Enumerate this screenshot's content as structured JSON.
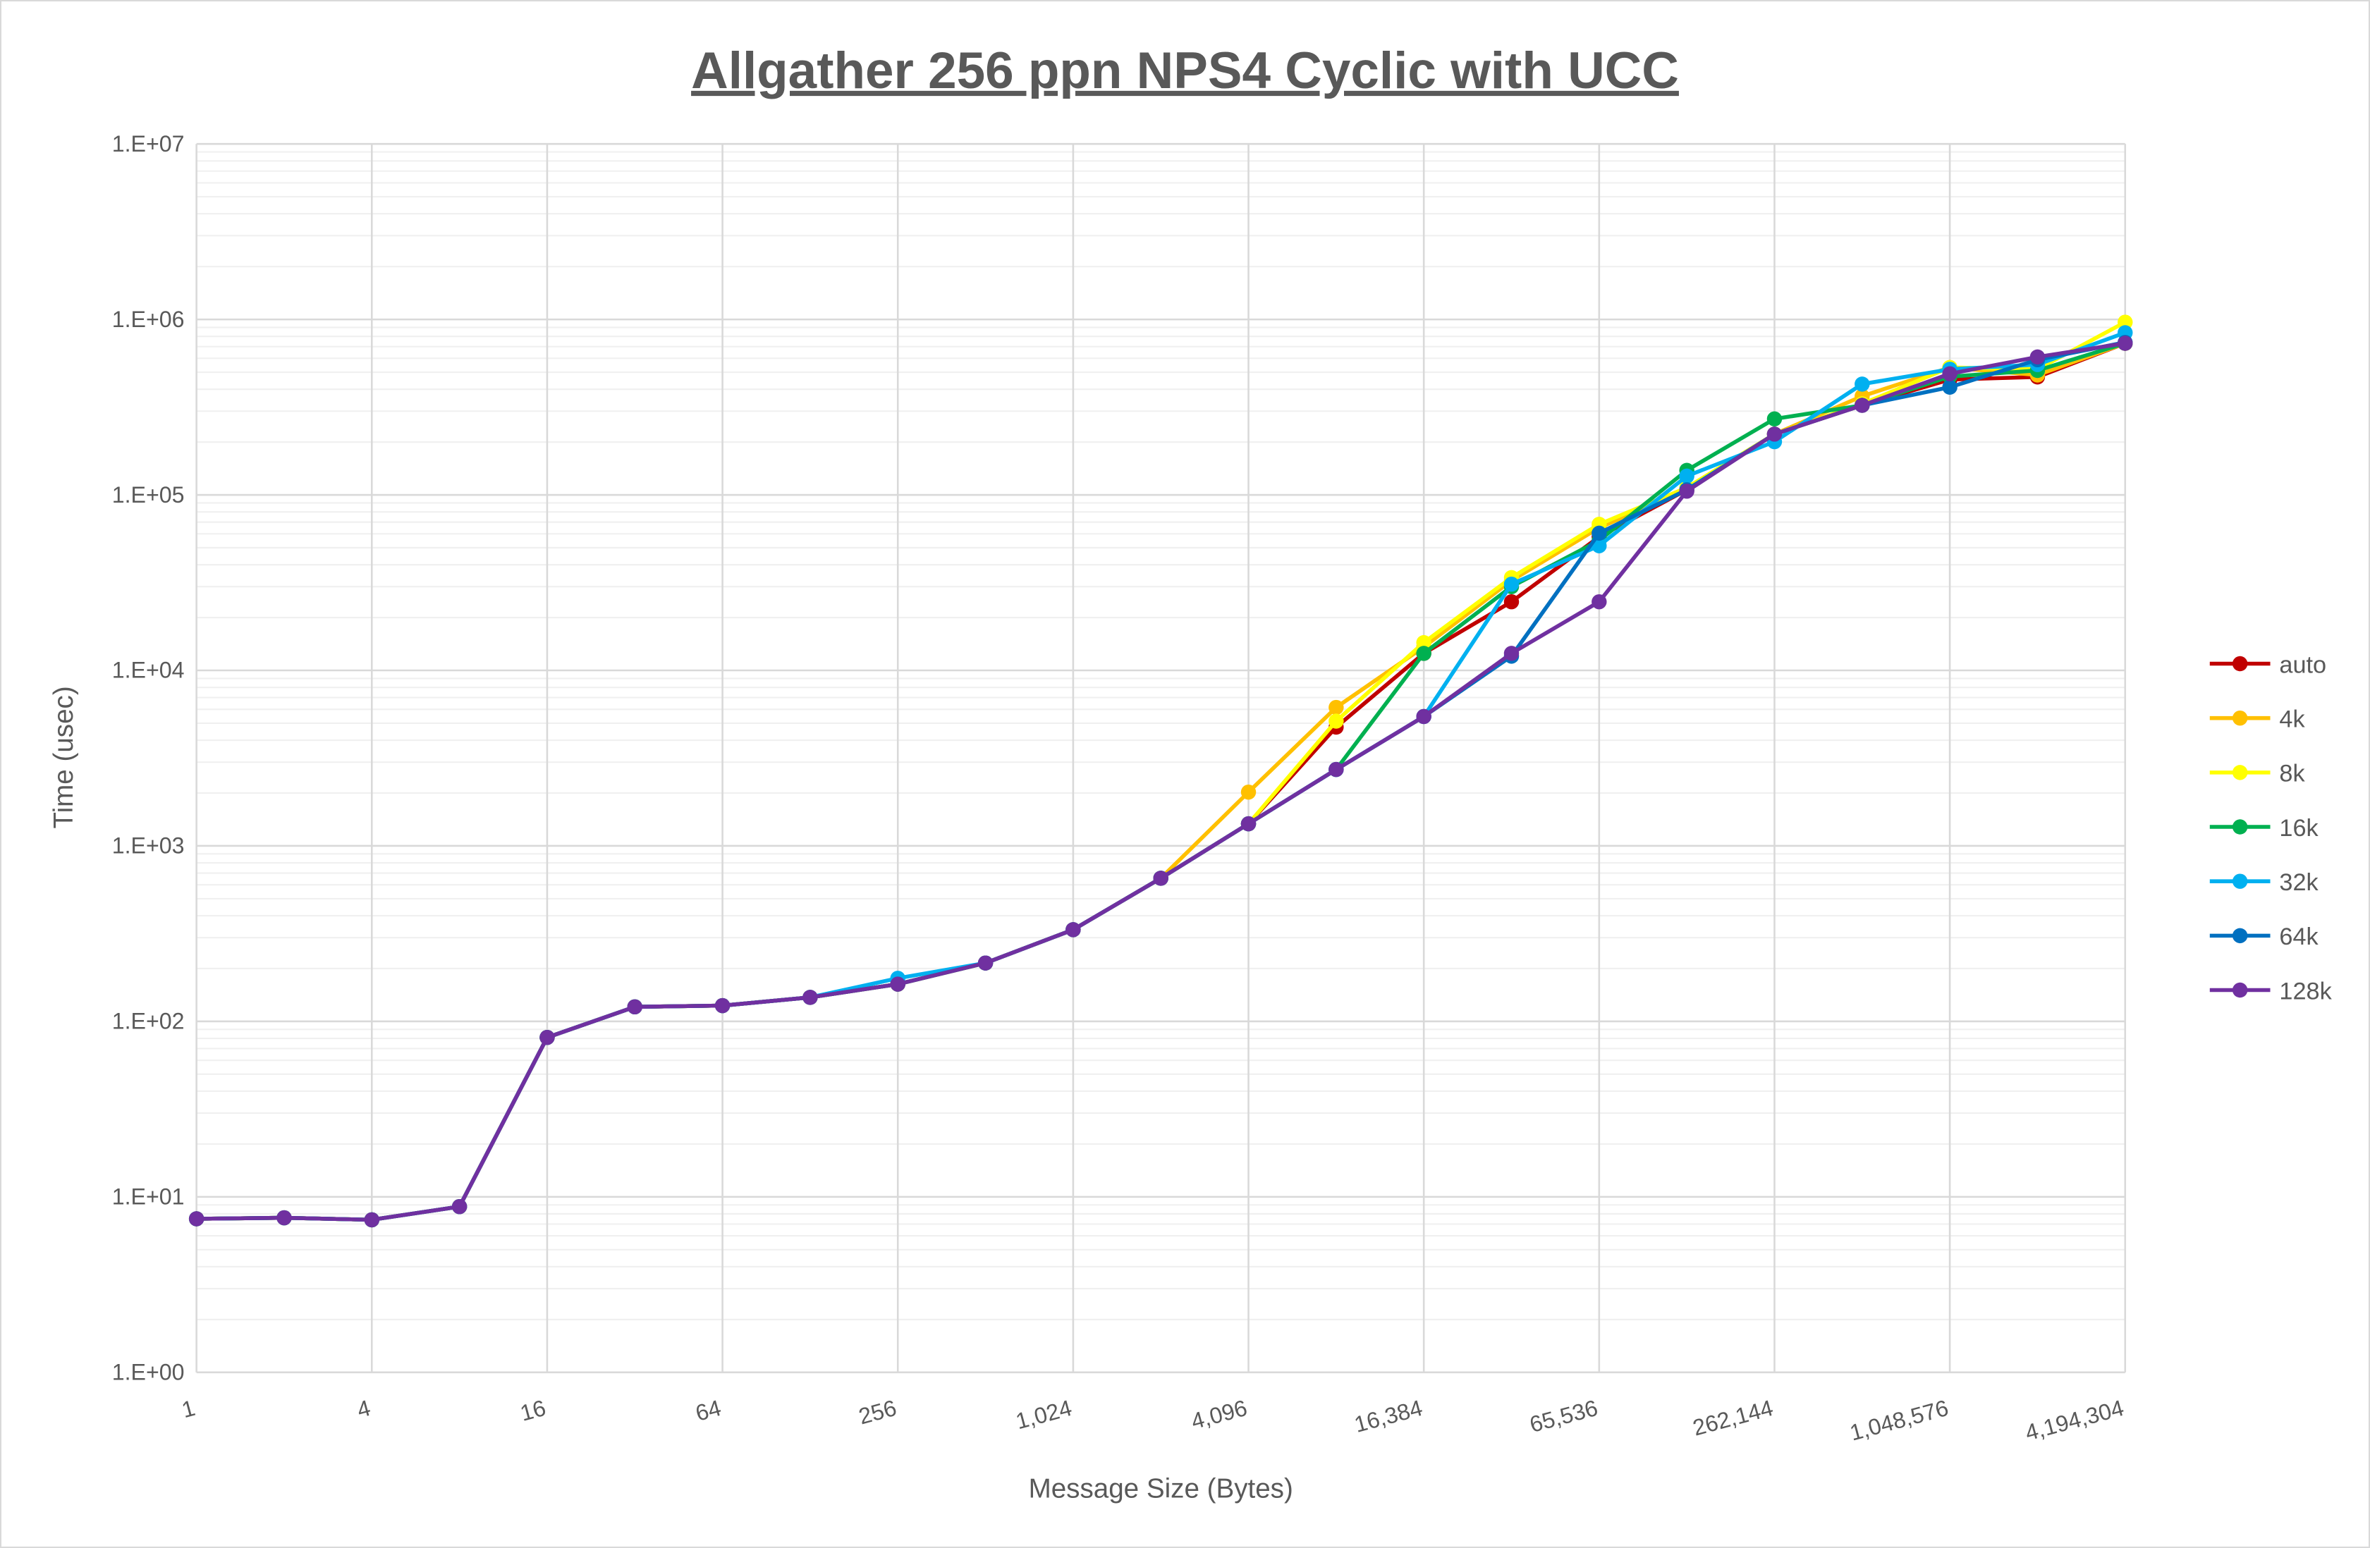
{
  "chart_data": {
    "type": "line",
    "title": "Allgather 256 ppn NPS4 Cyclic with UCC",
    "xlabel": "Message Size (Bytes)",
    "ylabel": "Time (usec)",
    "x_scale": "log2",
    "y_scale": "log10",
    "ylim": [
      1,
      10000000
    ],
    "grid": "major and minor horizontal, major vertical",
    "legend": "right",
    "x": [
      1,
      2,
      4,
      8,
      16,
      32,
      64,
      128,
      256,
      512,
      1024,
      2048,
      4096,
      8192,
      16384,
      32768,
      65536,
      131072,
      262144,
      524288,
      1048576,
      2097152,
      4194304
    ],
    "x_tick_labels": [
      "1",
      "4",
      "16",
      "64",
      "256",
      "1,024",
      "4,096",
      "16,384",
      "65,536",
      "262,144",
      "1,048,576",
      "4,194,304"
    ],
    "y_tick_labels": [
      "1.E+00",
      "1.E+01",
      "1.E+02",
      "1.E+03",
      "1.E+04",
      "1.E+05",
      "1.E+06",
      "1.E+07"
    ],
    "series": [
      {
        "name": "auto",
        "color": "#C00000",
        "values": [
          7.5,
          7.6,
          7.4,
          8.8,
          81,
          121,
          123,
          137,
          163,
          215,
          333,
          654,
          1336,
          4750,
          12500,
          24600,
          57700,
          107000,
          222000,
          324000,
          454000,
          470000,
          731000
        ]
      },
      {
        "name": "4k",
        "color": "#FFC000",
        "values": [
          7.5,
          7.6,
          7.4,
          8.8,
          81,
          121,
          123,
          137,
          163,
          215,
          333,
          654,
          2025,
          6150,
          13600,
          32500,
          65000,
          107000,
          222000,
          365000,
          532000,
          482000,
          731000
        ]
      },
      {
        "name": "8k",
        "color": "#FFFF00",
        "values": [
          7.5,
          7.6,
          7.4,
          8.8,
          81,
          121,
          123,
          137,
          163,
          215,
          333,
          654,
          1336,
          5140,
          14400,
          33800,
          68000,
          110000,
          222000,
          330000,
          532000,
          520000,
          964000
        ]
      },
      {
        "name": "16k",
        "color": "#00B050",
        "values": [
          7.5,
          7.6,
          7.4,
          8.8,
          81,
          121,
          123,
          137,
          163,
          215,
          333,
          654,
          1336,
          2725,
          12500,
          30000,
          55000,
          138000,
          271000,
          324000,
          472000,
          512000,
          731000
        ]
      },
      {
        "name": "32k",
        "color": "#00B0F0",
        "values": [
          7.5,
          7.6,
          7.4,
          8.8,
          81,
          121,
          123,
          137,
          176,
          215,
          333,
          654,
          1336,
          2725,
          5460,
          31000,
          51300,
          128000,
          201000,
          428000,
          520000,
          553000,
          840000
        ]
      },
      {
        "name": "64k",
        "color": "#0070C0",
        "values": [
          7.5,
          7.6,
          7.4,
          8.8,
          81,
          121,
          123,
          137,
          163,
          215,
          333,
          654,
          1336,
          2725,
          5460,
          12050,
          60500,
          107000,
          222000,
          324000,
          411000,
          589000,
          740000
        ]
      },
      {
        "name": "128k",
        "color": "#7030A0",
        "values": [
          7.5,
          7.6,
          7.4,
          8.8,
          81,
          121,
          123,
          137,
          163,
          215,
          333,
          654,
          1336,
          2725,
          5460,
          12500,
          24600,
          105000,
          222000,
          324000,
          490000,
          611000,
          731000
        ]
      }
    ]
  }
}
